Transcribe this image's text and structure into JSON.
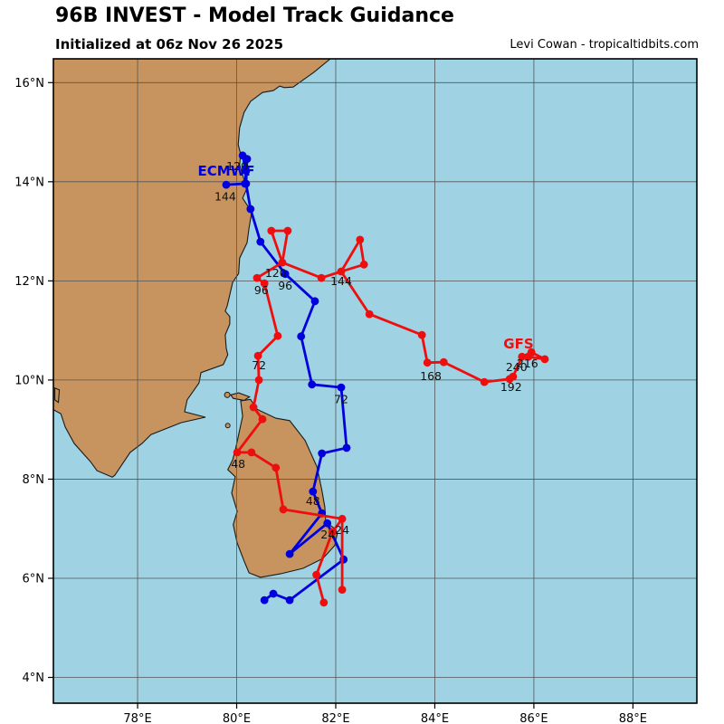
{
  "header": {
    "title": "96B INVEST - Model Track Guidance",
    "subtitle": "Initialized at 06z Nov 26 2025",
    "credit": "Levi Cowan - tropicaltidbits.com"
  },
  "chart_data": {
    "type": "line",
    "title": "96B INVEST - Model Track Guidance",
    "subtitle": "Initialized at 06z Nov 26 2025",
    "annotation_credit": "Levi Cowan - tropicaltidbits.com",
    "projection": "lat-lon map, Bay of Bengal / South India / Sri Lanka",
    "x_axis": {
      "range": [
        76.3,
        89.29
      ],
      "ticks": [
        78,
        80,
        82,
        84,
        86,
        88
      ],
      "tick_format": "°E"
    },
    "y_axis": {
      "range": [
        3.48,
        16.48
      ],
      "ticks": [
        4,
        6,
        8,
        10,
        12,
        14,
        16
      ],
      "tick_format": "°N"
    },
    "grid": true,
    "colors": {
      "ocean": "#9fd2e2",
      "land": "#c7935e",
      "coast": "#1a1a1a",
      "grid": "#555555",
      "ecmwf": "#0000dd",
      "gfs": "#ee0e0e",
      "hour_label": "#111111"
    },
    "series": [
      {
        "name": "ECMWF",
        "color": "#0000dd",
        "name_label": {
          "text": "ECMWF",
          "lon": 79.79,
          "lat": 14.22
        },
        "paths": [
          [
            [
              80.56,
              5.56
            ],
            [
              80.74,
              5.69
            ],
            [
              81.07,
              5.56
            ],
            [
              82.16,
              6.38
            ],
            [
              81.83,
              7.11
            ],
            [
              81.07,
              6.49
            ],
            [
              81.72,
              7.31
            ],
            [
              81.54,
              7.75
            ],
            [
              81.72,
              8.52
            ],
            [
              82.22,
              8.63
            ],
            [
              82.11,
              9.85
            ],
            [
              81.52,
              9.91
            ],
            [
              81.3,
              10.88
            ],
            [
              81.58,
              11.59
            ],
            [
              80.98,
              12.14
            ],
            [
              80.48,
              12.79
            ],
            [
              80.28,
              13.45
            ],
            [
              80.19,
              13.96
            ],
            [
              80.21,
              14.46
            ],
            [
              80.12,
              14.53
            ],
            [
              80.19,
              14.22
            ],
            [
              80.17,
              13.96
            ],
            [
              79.79,
              13.94
            ]
          ]
        ],
        "hour_labels": [
          {
            "text": "24",
            "lon": 81.84,
            "lat": 6.88
          },
          {
            "text": "48",
            "lon": 81.54,
            "lat": 7.55
          },
          {
            "text": "72",
            "lon": 82.11,
            "lat": 9.61
          },
          {
            "text": "96",
            "lon": 80.98,
            "lat": 11.9
          },
          {
            "text": "120",
            "lon": 80.01,
            "lat": 14.31
          },
          {
            "text": "144",
            "lon": 79.77,
            "lat": 13.7
          }
        ]
      },
      {
        "name": "GFS",
        "color": "#ee0e0e",
        "name_label": {
          "text": "GFS",
          "lon": 85.69,
          "lat": 10.73
        },
        "paths": [
          [
            [
              81.76,
              5.51
            ],
            [
              81.61,
              6.07
            ],
            [
              81.93,
              6.93
            ],
            [
              82.13,
              7.2
            ],
            [
              80.94,
              7.39
            ],
            [
              80.79,
              8.23
            ],
            [
              80.3,
              8.54
            ],
            [
              80.01,
              8.54
            ],
            [
              80.52,
              9.21
            ],
            [
              80.34,
              9.45
            ],
            [
              80.45,
              10.0
            ],
            [
              80.43,
              10.49
            ],
            [
              80.83,
              10.89
            ],
            [
              80.56,
              11.95
            ],
            [
              80.41,
              12.06
            ],
            [
              80.92,
              12.37
            ],
            [
              80.7,
              13.01
            ],
            [
              81.03,
              13.01
            ],
            [
              80.92,
              12.37
            ],
            [
              81.71,
              12.06
            ],
            [
              82.11,
              12.19
            ],
            [
              82.49,
              12.83
            ],
            [
              82.57,
              12.33
            ],
            [
              82.11,
              12.19
            ],
            [
              82.68,
              11.33
            ],
            [
              83.74,
              10.91
            ],
            [
              83.85,
              10.35
            ],
            [
              84.18,
              10.36
            ],
            [
              85.0,
              9.96
            ],
            [
              85.51,
              10.02
            ],
            [
              85.58,
              10.07
            ],
            [
              85.76,
              10.47
            ],
            [
              85.95,
              10.56
            ],
            [
              86.22,
              10.42
            ],
            [
              85.89,
              10.47
            ]
          ],
          [
            [
              82.13,
              7.2
            ],
            [
              82.13,
              5.77
            ]
          ]
        ],
        "hour_labels": [
          {
            "text": "24",
            "lon": 82.13,
            "lat": 6.97
          },
          {
            "text": "48",
            "lon": 80.03,
            "lat": 8.3
          },
          {
            "text": "72",
            "lon": 80.45,
            "lat": 10.29
          },
          {
            "text": "96",
            "lon": 80.5,
            "lat": 11.81
          },
          {
            "text": "120",
            "lon": 80.79,
            "lat": 12.15
          },
          {
            "text": "144",
            "lon": 82.11,
            "lat": 11.99
          },
          {
            "text": "168",
            "lon": 83.92,
            "lat": 10.07
          },
          {
            "text": "192",
            "lon": 85.54,
            "lat": 9.85
          },
          {
            "text": "216",
            "lon": 85.87,
            "lat": 10.33
          },
          {
            "text": "240",
            "lon": 85.65,
            "lat": 10.25
          }
        ]
      }
    ],
    "coastlines": {
      "india": [
        [
          81.89,
          16.48
        ],
        [
          81.56,
          16.21
        ],
        [
          81.14,
          15.91
        ],
        [
          80.96,
          15.9
        ],
        [
          80.87,
          15.93
        ],
        [
          80.74,
          15.84
        ],
        [
          80.52,
          15.8
        ],
        [
          80.28,
          15.62
        ],
        [
          80.15,
          15.4
        ],
        [
          80.06,
          15.09
        ],
        [
          80.03,
          14.75
        ],
        [
          80.08,
          14.56
        ],
        [
          80.06,
          14.34
        ],
        [
          80.14,
          14.07
        ],
        [
          80.21,
          13.87
        ],
        [
          80.12,
          13.67
        ],
        [
          80.23,
          13.5
        ],
        [
          80.3,
          13.36
        ],
        [
          80.25,
          13.07
        ],
        [
          80.21,
          12.77
        ],
        [
          80.06,
          12.46
        ],
        [
          80.04,
          12.15
        ],
        [
          79.92,
          11.97
        ],
        [
          79.81,
          11.5
        ],
        [
          79.77,
          11.39
        ],
        [
          79.86,
          11.28
        ],
        [
          79.86,
          11.13
        ],
        [
          79.77,
          10.91
        ],
        [
          79.79,
          10.64
        ],
        [
          79.82,
          10.51
        ],
        [
          79.73,
          10.31
        ],
        [
          79.28,
          10.15
        ],
        [
          79.24,
          9.94
        ],
        [
          79.0,
          9.6
        ],
        [
          78.95,
          9.36
        ],
        [
          79.37,
          9.25
        ],
        [
          78.88,
          9.14
        ],
        [
          78.27,
          8.9
        ],
        [
          78.09,
          8.72
        ],
        [
          77.85,
          8.54
        ],
        [
          77.54,
          8.08
        ],
        [
          77.49,
          8.04
        ],
        [
          77.18,
          8.17
        ],
        [
          77.05,
          8.35
        ],
        [
          76.72,
          8.72
        ],
        [
          76.54,
          9.05
        ],
        [
          76.45,
          9.32
        ],
        [
          76.28,
          9.41
        ],
        [
          76.28,
          16.6
        ],
        [
          81.89,
          16.6
        ]
      ],
      "sri_lanka": [
        [
          80.08,
          9.58
        ],
        [
          80.28,
          9.61
        ],
        [
          80.41,
          9.41
        ],
        [
          80.79,
          9.23
        ],
        [
          81.07,
          9.18
        ],
        [
          81.38,
          8.78
        ],
        [
          81.62,
          8.25
        ],
        [
          81.72,
          7.77
        ],
        [
          81.78,
          7.44
        ],
        [
          81.8,
          7.13
        ],
        [
          82.0,
          6.99
        ],
        [
          82.03,
          6.89
        ],
        [
          81.98,
          6.66
        ],
        [
          81.74,
          6.4
        ],
        [
          81.34,
          6.2
        ],
        [
          80.88,
          6.09
        ],
        [
          80.48,
          6.02
        ],
        [
          80.25,
          6.11
        ],
        [
          80.15,
          6.35
        ],
        [
          80.01,
          6.71
        ],
        [
          79.93,
          7.08
        ],
        [
          80.01,
          7.35
        ],
        [
          79.9,
          7.72
        ],
        [
          79.97,
          8.05
        ],
        [
          79.82,
          8.19
        ],
        [
          79.92,
          8.39
        ],
        [
          79.97,
          8.58
        ],
        [
          80.04,
          8.9
        ],
        [
          80.12,
          9.27
        ]
      ],
      "jaffna_sliver": [
        [
          79.88,
          9.7
        ],
        [
          80.04,
          9.74
        ],
        [
          80.26,
          9.66
        ],
        [
          80.15,
          9.59
        ],
        [
          79.93,
          9.63
        ]
      ],
      "kerala_islet": [
        [
          76.33,
          9.84
        ],
        [
          76.42,
          9.8
        ],
        [
          76.4,
          9.55
        ],
        [
          76.33,
          9.6
        ]
      ],
      "islet_dots": [
        {
          "lon": 79.81,
          "lat": 9.7,
          "r": 3
        },
        {
          "lon": 79.82,
          "lat": 9.08,
          "r": 2.5
        }
      ]
    }
  }
}
